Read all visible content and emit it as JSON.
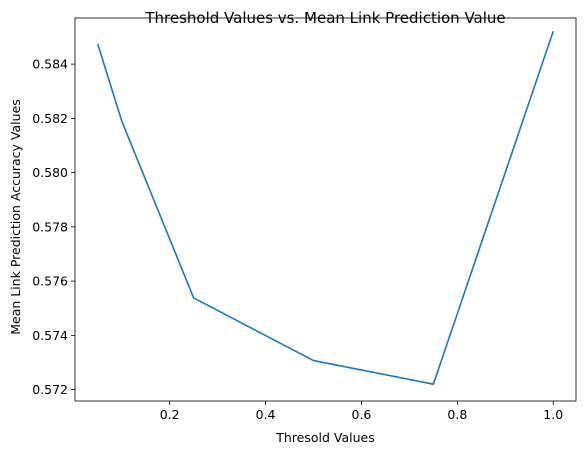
{
  "chart_data": {
    "type": "line",
    "title": "Threshold Values vs. Mean Link Prediction Value",
    "xlabel": "Thresold Values",
    "ylabel": "Mean Link Prediction Accuracy Values",
    "xlim": [
      0.0025,
      1.0475
    ],
    "ylim": [
      0.57158,
      0.5857
    ],
    "xticks": [
      0.2,
      0.4,
      0.6,
      0.8,
      1.0
    ],
    "xtick_labels": [
      "0.2",
      "0.4",
      "0.6",
      "0.8",
      "1.0"
    ],
    "yticks": [
      0.572,
      0.574,
      0.576,
      0.578,
      0.58,
      0.582,
      0.584
    ],
    "ytick_labels": [
      "0.572",
      "0.574",
      "0.576",
      "0.578",
      "0.580",
      "0.582",
      "0.584"
    ],
    "grid": false,
    "legend": "none",
    "series": [
      {
        "color": "#1f77b4",
        "x": [
          0.05,
          0.1,
          0.25,
          0.5,
          0.75,
          1.0
        ],
        "y": [
          0.58474,
          0.5819,
          0.57538,
          0.57307,
          0.5722,
          0.58521
        ]
      }
    ]
  }
}
